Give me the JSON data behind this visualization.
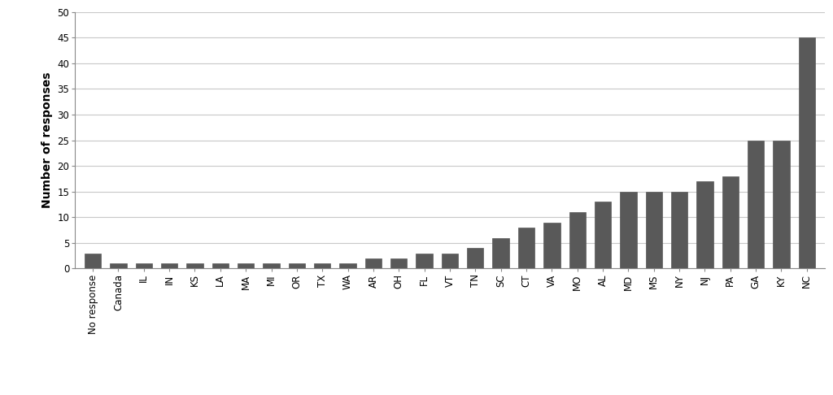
{
  "categories": [
    "No response",
    "Canada",
    "IL",
    "IN",
    "KS",
    "LA",
    "MA",
    "MI",
    "OR",
    "TX",
    "WA",
    "AR",
    "OH",
    "FL",
    "VT",
    "TN",
    "SC",
    "CT",
    "VA",
    "MO",
    "AL",
    "MD",
    "MS",
    "NY",
    "NJ",
    "PA",
    "GA",
    "KY",
    "NC"
  ],
  "values": [
    3,
    1,
    1,
    1,
    1,
    1,
    1,
    1,
    1,
    1,
    1,
    2,
    2,
    3,
    3,
    4,
    6,
    8,
    9,
    11,
    13,
    15,
    15,
    15,
    17,
    18,
    25,
    25,
    45
  ],
  "bar_color": "#595959",
  "ylabel": "Number of responses",
  "ylim": [
    0,
    50
  ],
  "yticks": [
    0,
    5,
    10,
    15,
    20,
    25,
    30,
    35,
    40,
    45,
    50
  ],
  "background_color": "#ffffff",
  "grid_color": "#c8c8c8",
  "tick_fontsize": 8.5,
  "label_fontsize": 10,
  "bar_width": 0.65
}
